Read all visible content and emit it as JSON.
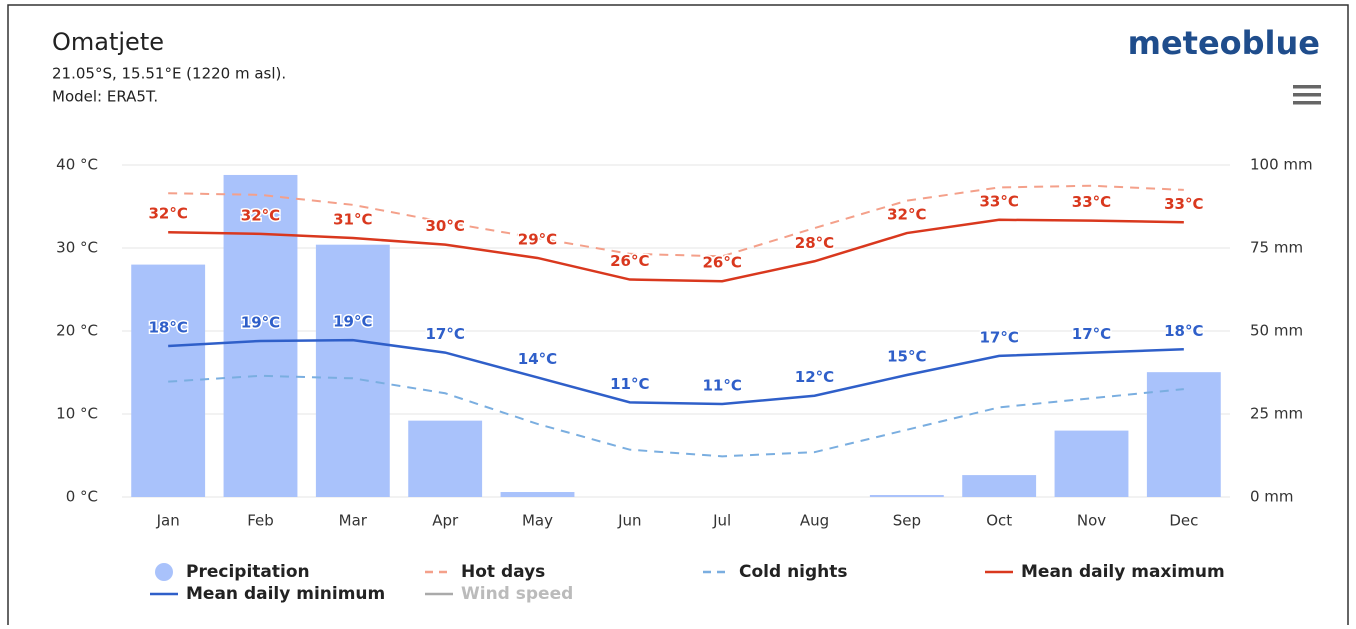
{
  "header": {
    "title": "Omatjete",
    "location": "21.05°S, 15.51°E (1220 m asl).",
    "model": "Model: ERA5T.",
    "logo": "meteoblue"
  },
  "chart_data": {
    "type": "combo",
    "categories": [
      "Jan",
      "Feb",
      "Mar",
      "Apr",
      "May",
      "Jun",
      "Jul",
      "Aug",
      "Sep",
      "Oct",
      "Nov",
      "Dec"
    ],
    "ylim": [
      0,
      40
    ],
    "yticks": [
      {
        "value": 0,
        "label": "0 °C"
      },
      {
        "value": 10,
        "label": "10 °C"
      },
      {
        "value": 20,
        "label": "20 °C"
      },
      {
        "value": 30,
        "label": "30 °C"
      },
      {
        "value": 40,
        "label": "40 °C"
      }
    ],
    "y2lim": [
      0,
      100
    ],
    "y2ticks": [
      {
        "value": 0,
        "label": "0 mm"
      },
      {
        "value": 25,
        "label": "25 mm"
      },
      {
        "value": 50,
        "label": "50 mm"
      },
      {
        "value": 75,
        "label": "75 mm"
      },
      {
        "value": 100,
        "label": "100 mm"
      }
    ],
    "grid": true,
    "series": [
      {
        "name": "Precipitation",
        "type": "bar",
        "axis": "y2",
        "color": "#a9c2fb",
        "values": [
          70,
          97,
          76,
          23,
          1.5,
          0,
          0,
          0,
          0.6,
          6.6,
          20,
          37.6
        ]
      },
      {
        "name": "Hot days",
        "type": "line",
        "dashed": true,
        "color": "#f4a08a",
        "values": [
          36.6,
          36.4,
          35.2,
          33.1,
          31.2,
          29.3,
          29.0,
          32.4,
          35.7,
          37.3,
          37.5,
          37.0
        ]
      },
      {
        "name": "Cold nights",
        "type": "line",
        "dashed": true,
        "color": "#7aaee0",
        "values": [
          13.9,
          14.6,
          14.3,
          12.5,
          8.8,
          5.7,
          4.9,
          5.4,
          8.1,
          10.8,
          11.9,
          13.0
        ]
      },
      {
        "name": "Mean daily maximum",
        "type": "line",
        "color": "#d9381e",
        "values": [
          31.9,
          31.7,
          31.2,
          30.4,
          28.8,
          26.2,
          26.0,
          28.4,
          31.8,
          33.4,
          33.3,
          33.1
        ],
        "value_labels": [
          "32°C",
          "32°C",
          "31°C",
          "30°C",
          "29°C",
          "26°C",
          "26°C",
          "28°C",
          "32°C",
          "33°C",
          "33°C",
          "33°C"
        ]
      },
      {
        "name": "Mean daily minimum",
        "type": "line",
        "color": "#2f5fc9",
        "values": [
          18.2,
          18.8,
          18.9,
          17.4,
          14.4,
          11.4,
          11.2,
          12.2,
          14.7,
          17.0,
          17.4,
          17.8
        ],
        "value_labels": [
          "18°C",
          "19°C",
          "19°C",
          "17°C",
          "14°C",
          "11°C",
          "11°C",
          "12°C",
          "15°C",
          "17°C",
          "17°C",
          "18°C"
        ]
      },
      {
        "name": "Wind speed",
        "type": "line",
        "hidden": true,
        "color": "#aaaaaa"
      }
    ]
  }
}
